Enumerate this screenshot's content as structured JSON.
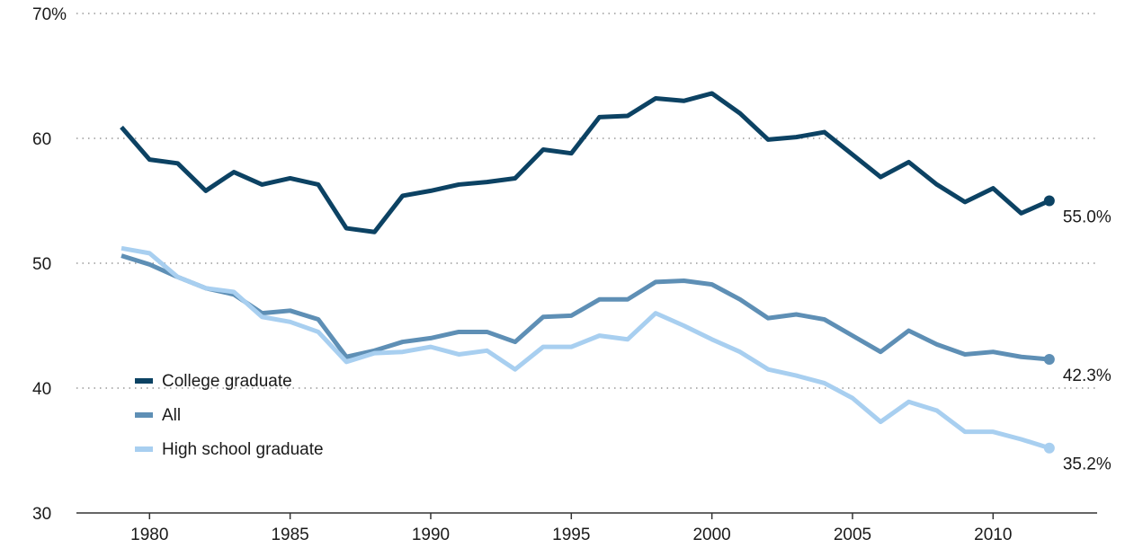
{
  "chart_data": {
    "type": "line",
    "x": [
      1979,
      1980,
      1981,
      1982,
      1983,
      1984,
      1985,
      1986,
      1987,
      1988,
      1989,
      1990,
      1991,
      1992,
      1993,
      1994,
      1995,
      1996,
      1997,
      1998,
      1999,
      2000,
      2001,
      2002,
      2003,
      2004,
      2005,
      2006,
      2007,
      2008,
      2009,
      2010,
      2011,
      2012
    ],
    "series": [
      {
        "name": "College graduate",
        "color": "#0c4263",
        "values": [
          60.9,
          58.3,
          58.0,
          55.8,
          57.3,
          56.3,
          56.8,
          56.3,
          52.8,
          52.5,
          55.4,
          55.8,
          56.3,
          56.5,
          56.8,
          59.1,
          58.8,
          61.7,
          61.8,
          63.2,
          63.0,
          63.6,
          62.0,
          59.9,
          60.1,
          60.5,
          58.7,
          56.9,
          58.1,
          56.3,
          54.9,
          56.0,
          54.0,
          55.0
        ],
        "value_labels": [
          null,
          null,
          null,
          null,
          null,
          null,
          null,
          null,
          null,
          null,
          null,
          null,
          null,
          null,
          null,
          null,
          null,
          null,
          null,
          null,
          null,
          null,
          null,
          null,
          null,
          null,
          null,
          null,
          null,
          null,
          null,
          null,
          null,
          "55.0%"
        ]
      },
      {
        "name": "All",
        "color": "#5e8fb5",
        "values": [
          50.6,
          49.9,
          48.9,
          48.0,
          47.5,
          46.0,
          46.2,
          45.5,
          42.5,
          43.0,
          43.7,
          44.0,
          44.5,
          44.5,
          43.7,
          45.7,
          45.8,
          47.1,
          47.1,
          48.5,
          48.6,
          48.3,
          47.1,
          45.6,
          45.9,
          45.5,
          44.2,
          42.9,
          44.6,
          43.5,
          42.7,
          42.9,
          42.5,
          42.3
        ],
        "value_labels": [
          null,
          null,
          null,
          null,
          null,
          null,
          null,
          null,
          null,
          null,
          null,
          null,
          null,
          null,
          null,
          null,
          null,
          null,
          null,
          null,
          null,
          null,
          null,
          null,
          null,
          null,
          null,
          null,
          null,
          null,
          null,
          null,
          null,
          "42.3%"
        ]
      },
      {
        "name": "High school graduate",
        "color": "#a8cff0",
        "values": [
          51.2,
          50.8,
          48.9,
          48.0,
          47.7,
          45.7,
          45.3,
          44.5,
          42.1,
          42.8,
          42.9,
          43.3,
          42.7,
          43.0,
          41.5,
          43.3,
          43.3,
          44.2,
          43.9,
          46.0,
          45.0,
          43.9,
          42.9,
          41.5,
          41.0,
          40.4,
          39.2,
          37.3,
          38.9,
          38.2,
          36.5,
          36.5,
          35.9,
          35.2
        ],
        "value_labels": [
          null,
          null,
          null,
          null,
          null,
          null,
          null,
          null,
          null,
          null,
          null,
          null,
          null,
          null,
          null,
          null,
          null,
          null,
          null,
          null,
          null,
          null,
          null,
          null,
          null,
          null,
          null,
          null,
          null,
          null,
          null,
          null,
          null,
          "35.2%"
        ]
      }
    ],
    "xlim": [
      1977.4,
      2013.7
    ],
    "xticks": [
      1980,
      1985,
      1990,
      1995,
      2000,
      2005,
      2010
    ],
    "ylim": [
      30,
      70
    ],
    "yticks": [
      30,
      40,
      50,
      60,
      {
        "value": 70,
        "label": "70%"
      }
    ],
    "grid": true,
    "legend_position": "lower left"
  }
}
